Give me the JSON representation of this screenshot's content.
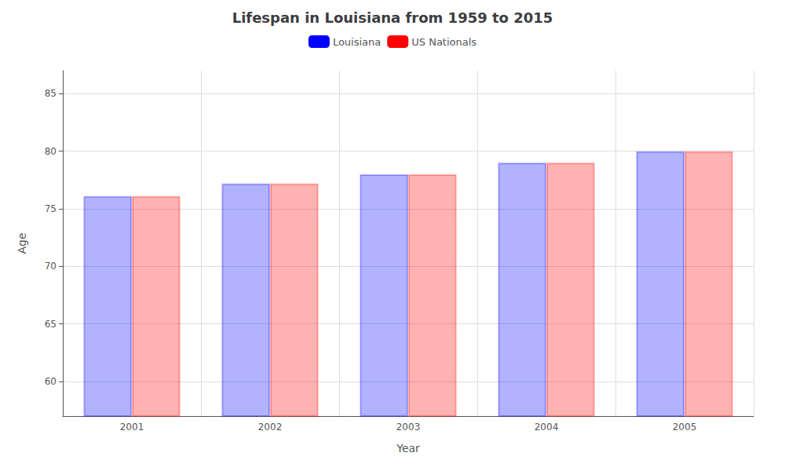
{
  "chart_data": {
    "type": "bar",
    "title": "Lifespan in Louisiana from 1959 to 2015",
    "xlabel": "Year",
    "ylabel": "Age",
    "categories": [
      "2001",
      "2002",
      "2003",
      "2004",
      "2005"
    ],
    "series": [
      {
        "name": "Louisiana",
        "color": "#0000ff",
        "values": [
          76.1,
          77.2,
          78.0,
          79.0,
          80.0
        ]
      },
      {
        "name": "US Nationals",
        "color": "#ff0000",
        "values": [
          76.1,
          77.2,
          78.0,
          79.0,
          80.0
        ]
      }
    ],
    "ylim": [
      57,
      87
    ],
    "yticks": [
      60,
      65,
      70,
      75,
      80,
      85
    ],
    "grid": true,
    "legend": "top"
  }
}
